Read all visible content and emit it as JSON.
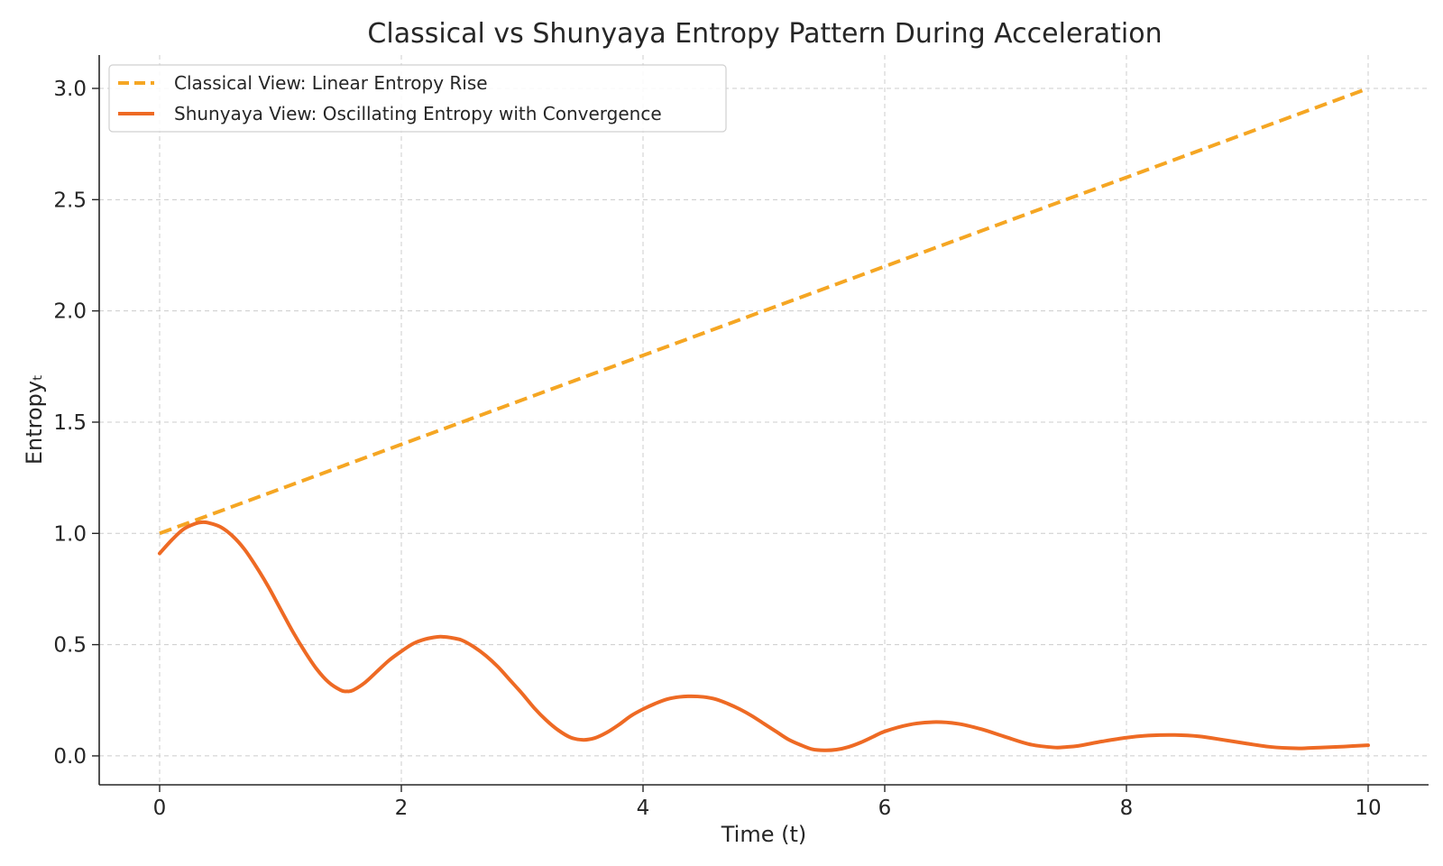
{
  "chart_data": {
    "type": "line",
    "title": "Classical vs Shunyaya Entropy Pattern During Acceleration",
    "xlabel": "Time (t)",
    "ylabel": "Entropyₜ",
    "xlim": [
      -0.5,
      10.5
    ],
    "ylim": [
      -0.13,
      3.15
    ],
    "xticks": [
      0,
      2,
      4,
      6,
      8,
      10
    ],
    "xtick_labels": [
      "0",
      "2",
      "4",
      "6",
      "8",
      "10"
    ],
    "yticks": [
      0.0,
      0.5,
      1.0,
      1.5,
      2.0,
      2.5,
      3.0
    ],
    "ytick_labels": [
      "0.0",
      "0.5",
      "1.0",
      "1.5",
      "2.0",
      "2.5",
      "3.0"
    ],
    "grid": true,
    "legend_position": "top-left",
    "series": [
      {
        "name": "Classical View: Linear Entropy Rise",
        "style": "dashed",
        "color": "#F5A623",
        "x": [
          0,
          10
        ],
        "y": [
          1.0,
          3.0
        ]
      },
      {
        "name": "Shunyaya View: Oscillating Entropy with Convergence",
        "style": "solid",
        "color": "#EE6A24",
        "x": [
          0,
          0.1,
          0.2,
          0.3,
          0.35,
          0.4,
          0.5,
          0.6,
          0.7,
          0.8,
          0.9,
          1.0,
          1.1,
          1.2,
          1.3,
          1.4,
          1.5,
          1.55,
          1.6,
          1.7,
          1.8,
          1.9,
          2.0,
          2.1,
          2.2,
          2.3,
          2.35,
          2.4,
          2.5,
          2.6,
          2.7,
          2.8,
          2.9,
          3.0,
          3.1,
          3.2,
          3.3,
          3.4,
          3.5,
          3.6,
          3.7,
          3.8,
          3.9,
          4.0,
          4.1,
          4.2,
          4.3,
          4.4,
          4.5,
          4.6,
          4.7,
          4.8,
          4.9,
          5.0,
          5.1,
          5.2,
          5.3,
          5.4,
          5.5,
          5.6,
          5.7,
          5.8,
          5.9,
          6.0,
          6.2,
          6.4,
          6.6,
          6.8,
          7.0,
          7.2,
          7.4,
          7.5,
          7.6,
          7.8,
          8.0,
          8.2,
          8.4,
          8.6,
          8.8,
          9.0,
          9.2,
          9.4,
          9.5,
          9.6,
          9.8,
          10.0
        ],
        "y": [
          0.91,
          0.97,
          1.02,
          1.045,
          1.05,
          1.048,
          1.03,
          0.99,
          0.93,
          0.85,
          0.76,
          0.66,
          0.56,
          0.47,
          0.39,
          0.33,
          0.295,
          0.29,
          0.295,
          0.33,
          0.38,
          0.43,
          0.47,
          0.505,
          0.525,
          0.535,
          0.535,
          0.532,
          0.52,
          0.49,
          0.45,
          0.4,
          0.34,
          0.28,
          0.215,
          0.16,
          0.115,
          0.083,
          0.072,
          0.08,
          0.105,
          0.14,
          0.18,
          0.21,
          0.235,
          0.255,
          0.265,
          0.268,
          0.265,
          0.255,
          0.235,
          0.21,
          0.18,
          0.145,
          0.11,
          0.075,
          0.05,
          0.03,
          0.025,
          0.028,
          0.04,
          0.06,
          0.085,
          0.11,
          0.14,
          0.152,
          0.145,
          0.12,
          0.085,
          0.052,
          0.038,
          0.04,
          0.045,
          0.065,
          0.082,
          0.092,
          0.094,
          0.088,
          0.072,
          0.055,
          0.04,
          0.034,
          0.035,
          0.037,
          0.042,
          0.048
        ]
      }
    ]
  }
}
